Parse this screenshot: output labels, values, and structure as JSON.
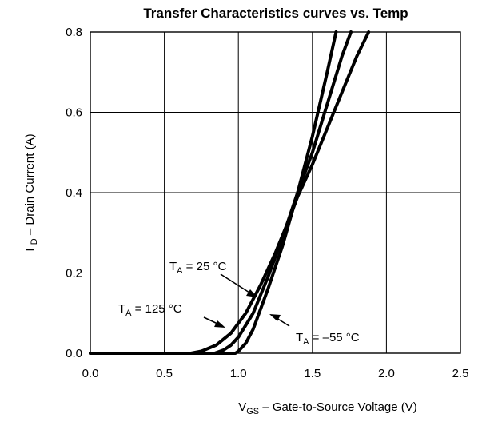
{
  "chart_data": {
    "type": "line",
    "title": "Transfer Characteristics curves vs. Temp",
    "xlabel": {
      "main": "V",
      "sub": "GS",
      "rest": " – Gate-to-Source Voltage (V)"
    },
    "ylabel": {
      "main": "I ",
      "sub": "D",
      "rest": " – Drain Current (A)"
    },
    "xlim": [
      0.0,
      2.5
    ],
    "ylim": [
      0.0,
      0.8
    ],
    "xticks": [
      "0.0",
      "0.5",
      "1.0",
      "1.5",
      "2.0",
      "2.5"
    ],
    "yticks": [
      "0.0",
      "0.2",
      "0.4",
      "0.6",
      "0.8"
    ],
    "grid": true,
    "series": [
      {
        "name": "TA = 125 °C",
        "label": {
          "main": "T",
          "sub": "A",
          "rest": " = 125 °C"
        },
        "x": [
          0.0,
          0.68,
          0.75,
          0.85,
          0.95,
          1.05,
          1.15,
          1.25,
          1.35,
          1.4,
          1.5,
          1.6,
          1.7,
          1.8,
          1.88
        ],
        "y": [
          0.0,
          0.0,
          0.005,
          0.02,
          0.05,
          0.1,
          0.17,
          0.25,
          0.34,
          0.39,
          0.47,
          0.56,
          0.65,
          0.74,
          0.8
        ]
      },
      {
        "name": "TA = 25 °C",
        "label": {
          "main": "T",
          "sub": "A",
          "rest": " = 25 °C"
        },
        "x": [
          0.0,
          0.84,
          0.9,
          0.95,
          1.0,
          1.1,
          1.2,
          1.3,
          1.4,
          1.5,
          1.6,
          1.7,
          1.76
        ],
        "y": [
          0.0,
          0.0,
          0.008,
          0.02,
          0.04,
          0.1,
          0.19,
          0.29,
          0.4,
          0.5,
          0.62,
          0.74,
          0.8
        ]
      },
      {
        "name": "TA = –55 °C",
        "label": {
          "main": "T",
          "sub": "A",
          "rest": " = –55 °C"
        },
        "x": [
          0.0,
          0.98,
          1.0,
          1.05,
          1.1,
          1.2,
          1.3,
          1.4,
          1.5,
          1.6,
          1.66
        ],
        "y": [
          0.0,
          0.0,
          0.005,
          0.025,
          0.06,
          0.16,
          0.27,
          0.4,
          0.54,
          0.7,
          0.8
        ]
      }
    ]
  }
}
